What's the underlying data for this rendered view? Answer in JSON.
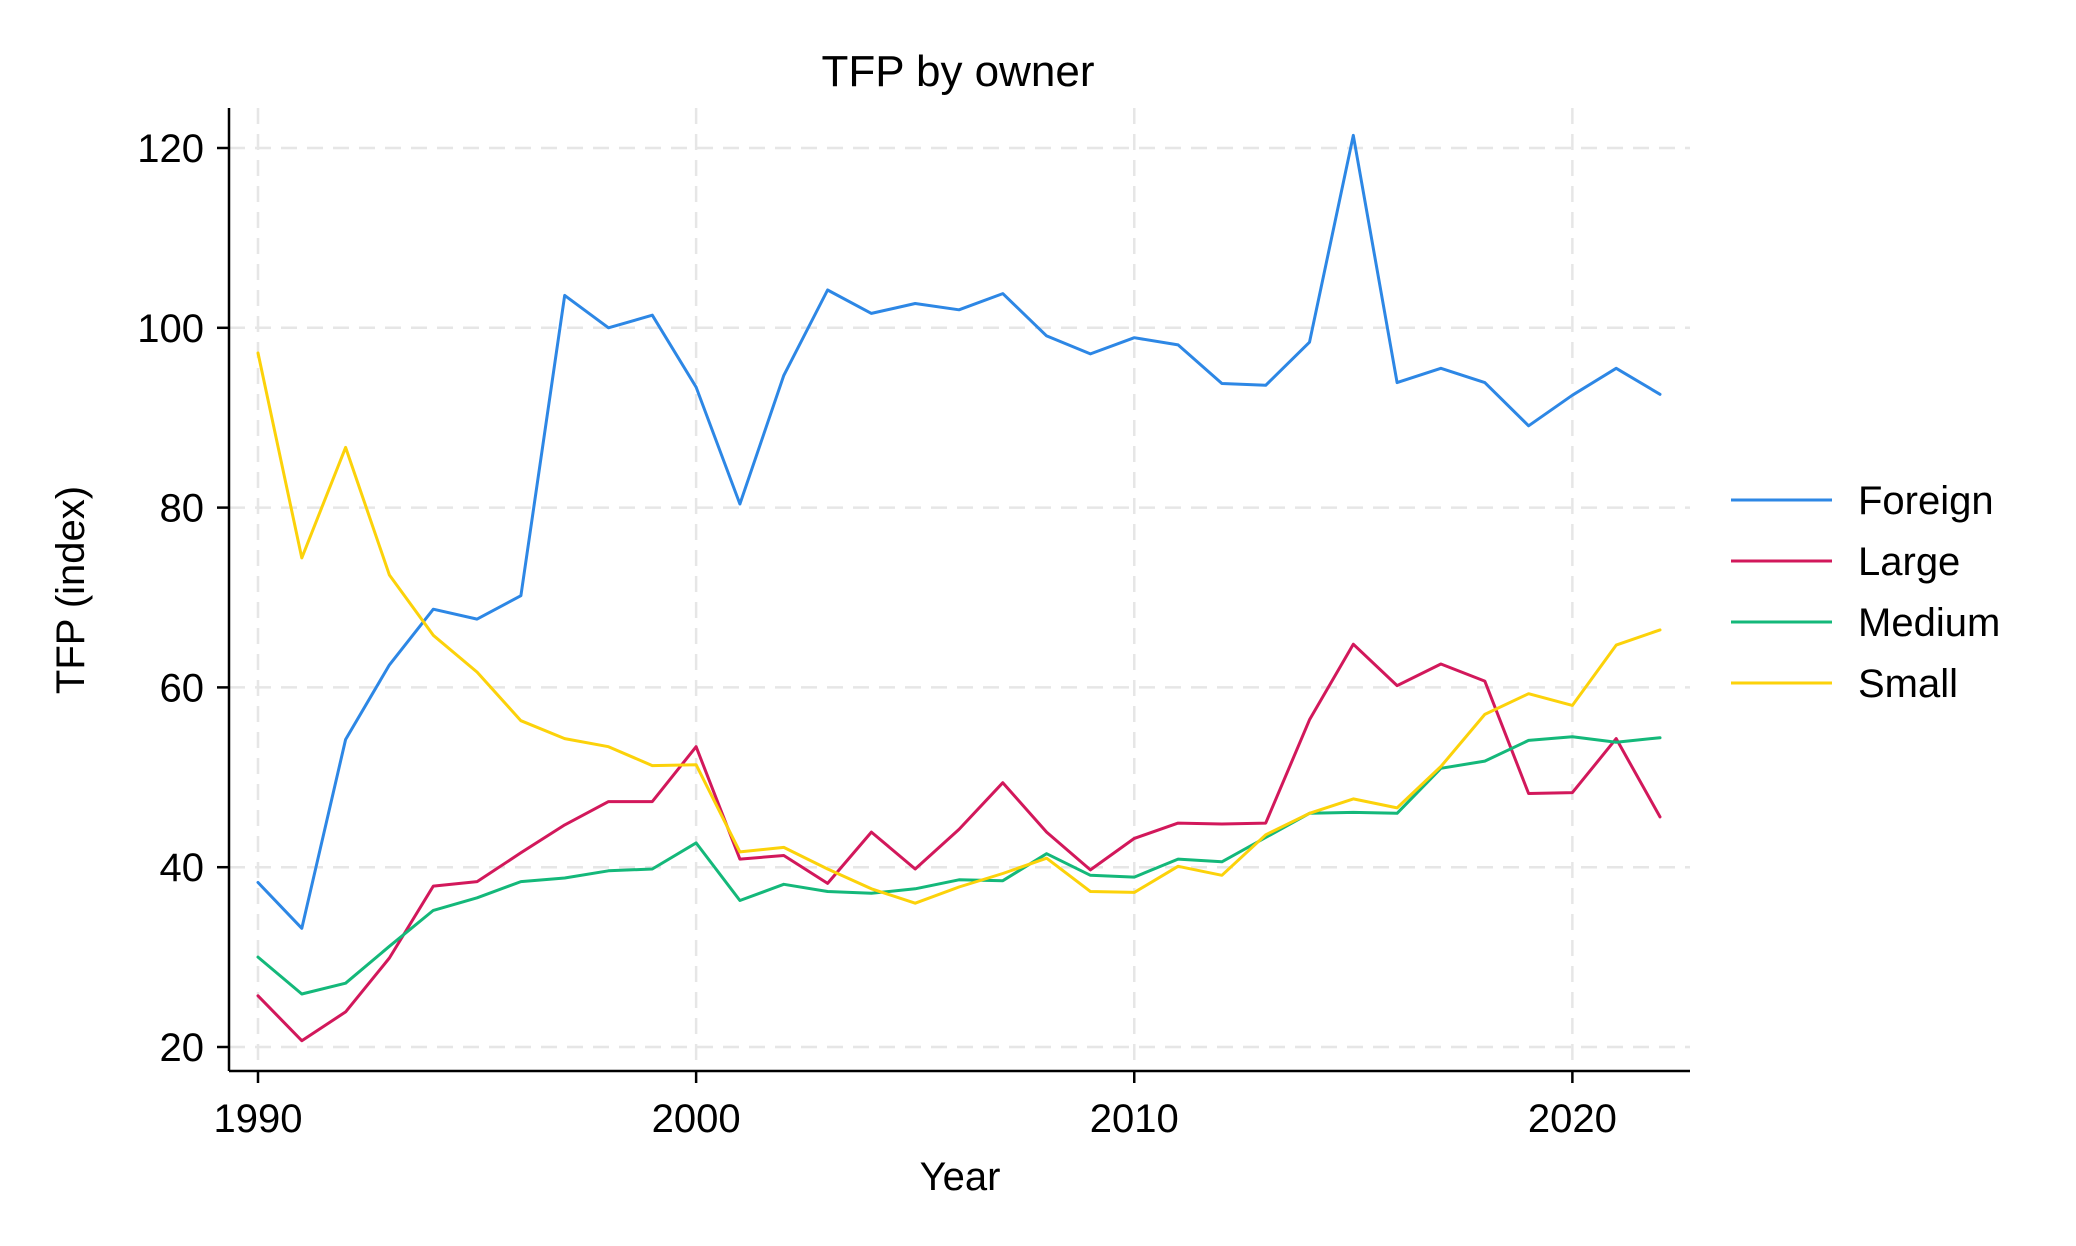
{
  "chart_data": {
    "type": "line",
    "title": "TFP by owner",
    "xlabel": "Year",
    "ylabel": "TFP (index)",
    "xlim": [
      1990,
      2022
    ],
    "ylim": [
      20,
      121.5
    ],
    "x_ticks": [
      1990,
      2000,
      2010,
      2020
    ],
    "y_ticks": [
      20,
      40,
      60,
      80,
      100,
      120
    ],
    "grid": true,
    "legend_position": "right",
    "x": [
      1990,
      1991,
      1992,
      1993,
      1994,
      1995,
      1996,
      1997,
      1998,
      1999,
      2000,
      2001,
      2002,
      2003,
      2004,
      2005,
      2006,
      2007,
      2008,
      2009,
      2010,
      2011,
      2012,
      2013,
      2014,
      2015,
      2016,
      2017,
      2018,
      2019,
      2020,
      2021,
      2022
    ],
    "series": [
      {
        "name": "Foreign",
        "color": "#2d87e5",
        "values": [
          38.3,
          33.2,
          54.2,
          62.5,
          68.7,
          67.6,
          70.2,
          103.6,
          100.0,
          101.4,
          93.4,
          80.4,
          94.7,
          104.2,
          101.6,
          102.7,
          102.0,
          103.8,
          99.1,
          97.1,
          98.9,
          98.1,
          93.8,
          93.6,
          98.4,
          121.4,
          93.9,
          95.5,
          93.9,
          89.1,
          92.5,
          95.5,
          92.6
        ]
      },
      {
        "name": "Large",
        "color": "#d2185b",
        "values": [
          25.7,
          20.7,
          23.9,
          29.9,
          37.9,
          38.4,
          41.6,
          44.7,
          47.3,
          47.3,
          53.4,
          40.9,
          41.3,
          38.2,
          43.9,
          39.8,
          44.2,
          49.4,
          43.9,
          39.7,
          43.2,
          44.9,
          44.8,
          44.9,
          56.4,
          64.8,
          60.2,
          62.6,
          60.7,
          48.2,
          48.3,
          54.3,
          45.6
        ]
      },
      {
        "name": "Medium",
        "color": "#14b87a",
        "values": [
          30.0,
          25.9,
          27.1,
          31.2,
          35.2,
          36.6,
          38.4,
          38.8,
          39.6,
          39.8,
          42.7,
          36.3,
          38.1,
          37.3,
          37.1,
          37.6,
          38.6,
          38.5,
          41.5,
          39.1,
          38.9,
          40.9,
          40.6,
          43.3,
          46.0,
          46.1,
          46.0,
          51.0,
          51.8,
          54.1,
          54.5,
          53.9,
          54.4
        ]
      },
      {
        "name": "Small",
        "color": "#fcd20a",
        "values": [
          97.2,
          74.4,
          86.7,
          72.5,
          65.8,
          61.7,
          56.3,
          54.3,
          53.4,
          51.3,
          51.4,
          41.7,
          42.2,
          39.8,
          37.6,
          36.0,
          37.8,
          39.3,
          41.0,
          37.3,
          37.2,
          40.1,
          39.1,
          43.6,
          46.0,
          47.6,
          46.6,
          51.2,
          57.0,
          59.3,
          58.0,
          64.7,
          66.4
        ]
      }
    ]
  }
}
